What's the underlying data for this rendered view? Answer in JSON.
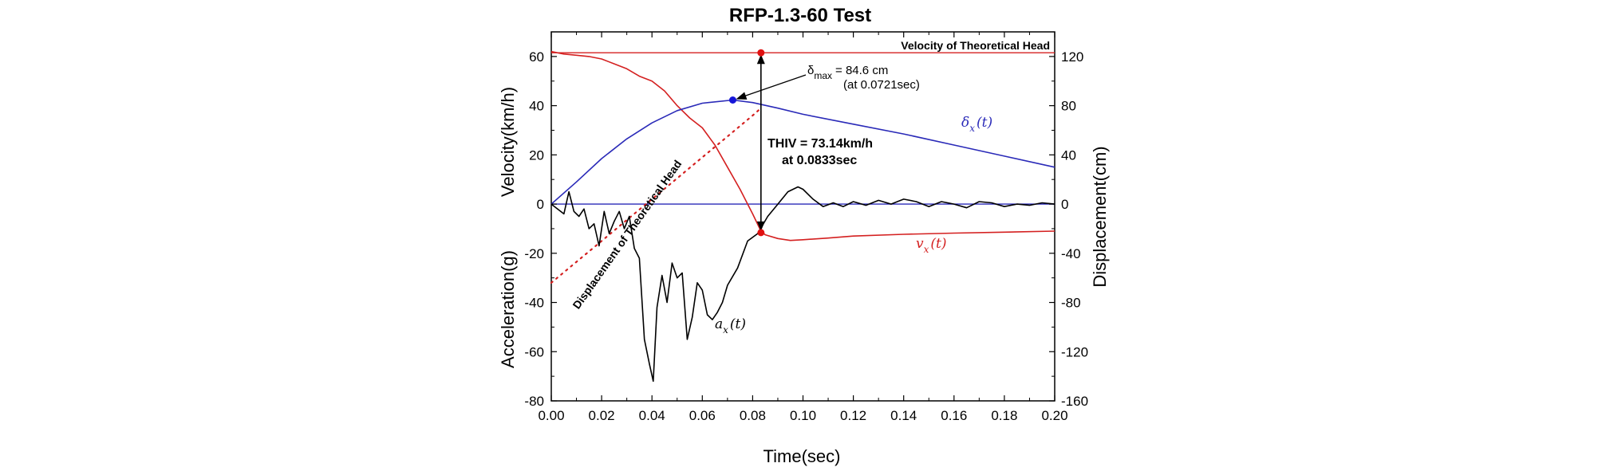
{
  "chart_data": {
    "type": "line",
    "title": "RFP-1.3-60 Test",
    "xlabel": "Time(sec)",
    "ylabel_left_top": "Velocity(km/h)",
    "ylabel_left_bottom": "Acceleration(g)",
    "ylabel_right": "Displacement(cm)",
    "xlim": [
      0.0,
      0.2
    ],
    "ylim_left": [
      -80,
      70
    ],
    "ylim_right": [
      -160,
      140
    ],
    "x_ticks": [
      "0.00",
      "0.02",
      "0.04",
      "0.06",
      "0.08",
      "0.10",
      "0.12",
      "0.14",
      "0.16",
      "0.18",
      "0.20"
    ],
    "y_left_ticks": [
      "-80",
      "-60",
      "-40",
      "-20",
      "0",
      "20",
      "40",
      "60"
    ],
    "y_right_ticks": [
      "-160",
      "-120",
      "-80",
      "-40",
      "0",
      "40",
      "80",
      "120"
    ],
    "series": [
      {
        "name": "v_x(t)",
        "label_main": "v",
        "label_sub": "x",
        "label_tail": "(t)",
        "color": "#d42020",
        "axis": "left",
        "x": [
          0.0,
          0.005,
          0.01,
          0.015,
          0.02,
          0.025,
          0.03,
          0.035,
          0.04,
          0.045,
          0.05,
          0.055,
          0.06,
          0.065,
          0.07,
          0.075,
          0.08,
          0.0833,
          0.085,
          0.09,
          0.095,
          0.1,
          0.11,
          0.12,
          0.14,
          0.16,
          0.18,
          0.2
        ],
        "y": [
          62,
          61,
          60.5,
          60,
          59,
          57,
          55,
          52,
          50,
          46,
          40,
          35,
          31,
          24,
          15,
          6,
          -4,
          -11,
          -12.5,
          -14,
          -14.8,
          -14.5,
          -13.8,
          -13,
          -12.3,
          -11.8,
          -11.4,
          -11
        ]
      },
      {
        "name": "δ_x(t)",
        "label_main": "δ",
        "label_sub": "x",
        "label_tail": "(t)",
        "color": "#2a2ab8",
        "axis": "right",
        "x": [
          0.0,
          0.01,
          0.02,
          0.03,
          0.04,
          0.05,
          0.06,
          0.0721,
          0.08,
          0.09,
          0.1,
          0.12,
          0.14,
          0.16,
          0.18,
          0.2
        ],
        "y": [
          0,
          18,
          37,
          53,
          66,
          76,
          82,
          84.6,
          82.5,
          78,
          73,
          65,
          57,
          48,
          39,
          30
        ]
      },
      {
        "name": "a_x(t)",
        "label_main": "a",
        "label_sub": "x",
        "label_tail": "(t)",
        "color": "#000000",
        "axis": "left",
        "x": [
          0.0,
          0.005,
          0.007,
          0.009,
          0.011,
          0.013,
          0.015,
          0.017,
          0.019,
          0.021,
          0.023,
          0.025,
          0.027,
          0.029,
          0.031,
          0.033,
          0.035,
          0.037,
          0.039,
          0.0405,
          0.042,
          0.044,
          0.046,
          0.048,
          0.05,
          0.052,
          0.054,
          0.056,
          0.058,
          0.06,
          0.062,
          0.064,
          0.066,
          0.068,
          0.07,
          0.074,
          0.078,
          0.082,
          0.086,
          0.09,
          0.094,
          0.098,
          0.1,
          0.104,
          0.108,
          0.112,
          0.116,
          0.12,
          0.125,
          0.13,
          0.135,
          0.14,
          0.145,
          0.15,
          0.155,
          0.16,
          0.165,
          0.17,
          0.175,
          0.18,
          0.185,
          0.19,
          0.195,
          0.2
        ],
        "y": [
          0,
          -4,
          5,
          -3,
          -5,
          -2,
          -10,
          -8,
          -17,
          -3,
          -12,
          -7,
          -3,
          -10,
          -5,
          -18,
          -22,
          -55,
          -65,
          -72,
          -42,
          -29,
          -40,
          -24,
          -30,
          -28,
          -55,
          -46,
          -32,
          -35,
          -45,
          -47,
          -44,
          -40,
          -33,
          -26,
          -15,
          -12,
          -5,
          0,
          5,
          7,
          6,
          2,
          -1,
          0.5,
          -1,
          1,
          -0.5,
          1.5,
          0,
          2,
          1,
          -1,
          1,
          0,
          -1.5,
          1,
          0.5,
          -1,
          0,
          -0.5,
          0.5,
          0
        ]
      }
    ],
    "theoretical_head_velocity": {
      "label": "Velocity of Theoretical Head",
      "y": 61.5,
      "color": "#d42020"
    },
    "theoretical_head_displacement": {
      "label": "Displacement of Theoretical Head",
      "color": "#d42020",
      "axis": "right",
      "x": [
        0.0,
        0.01,
        0.02,
        0.03,
        0.04,
        0.05,
        0.06,
        0.07,
        0.08,
        0.0833
      ],
      "y": [
        -64,
        -47,
        -30,
        -13,
        4,
        21,
        38,
        55,
        72,
        78
      ]
    },
    "annotations": {
      "dmax_symbol": "δ",
      "dmax_sub": "max",
      "dmax_text": "= 84.6 cm",
      "dmax_time": "(at 0.0721sec)",
      "dmax_point": {
        "x": 0.0721,
        "y": 84.6
      },
      "thiv_text": "THIV = 73.14km/h",
      "thiv_time": "at 0.0833sec",
      "thiv_x": 0.0833,
      "thiv_top": 61.5,
      "thiv_bottom": -11.6
    },
    "grid": false,
    "legend": "none"
  }
}
